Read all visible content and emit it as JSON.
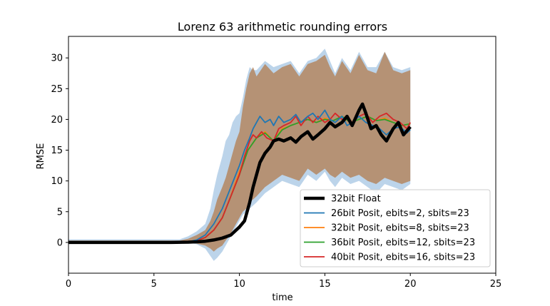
{
  "chart_data": {
    "type": "line",
    "title": "Lorenz 63 arithmetic rounding errors",
    "xlabel": "time",
    "ylabel": "RMSE",
    "xlim": [
      0,
      25
    ],
    "ylim": [
      -5,
      33.5
    ],
    "xticks": [
      0,
      5,
      10,
      15,
      20,
      25
    ],
    "yticks": [
      0,
      5,
      10,
      15,
      20,
      25,
      30
    ],
    "legend_position": "lower-right",
    "band_light": {
      "color": "#bcd4ea",
      "x": [
        0,
        6.5,
        7.0,
        7.5,
        8.0,
        8.3,
        8.5,
        8.7,
        9.0,
        9.2,
        9.4,
        9.6,
        9.8,
        10.0,
        10.2,
        10.4,
        10.6,
        10.8,
        11.0,
        11.5,
        12.0,
        12.5,
        13.0,
        13.5,
        14.0,
        14.5,
        15.0,
        15.3,
        15.6,
        16.0,
        16.5,
        17.0,
        17.5,
        18.0,
        18.5,
        19.0,
        19.5,
        20.0
      ],
      "upper": [
        0.5,
        0.5,
        1.0,
        1.8,
        3.0,
        5.5,
        8.5,
        11.0,
        14.0,
        16.5,
        17.5,
        19.5,
        20.5,
        21.0,
        23.5,
        26.5,
        28.5,
        28.0,
        28.0,
        29.5,
        28.5,
        29.0,
        29.5,
        27.5,
        29.5,
        30.0,
        31.5,
        29.5,
        27.5,
        30.0,
        28.0,
        31.0,
        28.5,
        28.5,
        31.0,
        28.5,
        28.0,
        28.5
      ],
      "lower": [
        0,
        0,
        0,
        -0.3,
        -1.0,
        -2.2,
        -3.0,
        -2.5,
        -1.5,
        -0.5,
        0.5,
        1.5,
        2.5,
        3.5,
        4.5,
        5.0,
        5.5,
        6.0,
        6.5,
        8.0,
        9.0,
        10.0,
        9.5,
        9.0,
        11.0,
        10.0,
        11.5,
        10.0,
        9.0,
        10.5,
        9.5,
        10.0,
        9.0,
        8.0,
        9.5,
        9.0,
        8.5,
        9.5
      ]
    },
    "band_dark": {
      "color": "#b48660",
      "x": [
        0,
        6.5,
        7.0,
        7.5,
        8.0,
        8.3,
        8.5,
        8.7,
        9.0,
        9.2,
        9.4,
        9.6,
        9.8,
        10.0,
        10.2,
        10.4,
        10.6,
        10.8,
        11.0,
        11.5,
        12.0,
        12.5,
        13.0,
        13.5,
        14.0,
        14.5,
        15.0,
        15.3,
        15.6,
        16.0,
        16.5,
        17.0,
        17.5,
        18.0,
        18.5,
        19.0,
        19.5,
        20.0
      ],
      "upper": [
        0.3,
        0.3,
        0.6,
        1.2,
        2.0,
        3.5,
        5.0,
        7.0,
        9.0,
        10.5,
        12.5,
        14.5,
        16.5,
        18.0,
        22.0,
        25.0,
        27.5,
        28.5,
        27.0,
        29.0,
        27.5,
        28.5,
        29.0,
        27.0,
        29.0,
        29.5,
        30.5,
        28.5,
        27.0,
        29.5,
        27.5,
        30.5,
        28.0,
        27.5,
        31.0,
        28.0,
        27.5,
        28.0
      ],
      "lower": [
        0,
        0,
        0,
        -0.2,
        -0.5,
        -1.0,
        -1.5,
        -1.0,
        -0.5,
        0.3,
        1.0,
        2.0,
        3.0,
        4.0,
        5.0,
        5.5,
        6.5,
        7.0,
        7.5,
        9.0,
        10.0,
        11.0,
        10.5,
        10.0,
        12.0,
        11.0,
        12.0,
        11.0,
        10.5,
        11.5,
        10.5,
        11.0,
        10.0,
        9.5,
        10.5,
        10.0,
        9.5,
        10.0
      ]
    },
    "series": [
      {
        "name": "32bit Float",
        "color": "#000000",
        "linewidth": 4.5,
        "x": [
          0,
          6.0,
          7.0,
          7.5,
          8.0,
          8.5,
          9.0,
          9.5,
          10.0,
          10.3,
          10.6,
          10.8,
          11.0,
          11.2,
          11.5,
          11.8,
          12.0,
          12.3,
          12.6,
          13.0,
          13.3,
          13.6,
          14.0,
          14.3,
          14.6,
          15.0,
          15.3,
          15.6,
          16.0,
          16.3,
          16.6,
          17.0,
          17.2,
          17.4,
          17.7,
          18.0,
          18.3,
          18.6,
          19.0,
          19.3,
          19.6,
          20.0
        ],
        "y": [
          0,
          0,
          0.05,
          0.1,
          0.2,
          0.4,
          0.7,
          1.2,
          2.5,
          3.5,
          6.5,
          9.0,
          11.0,
          13.0,
          14.5,
          15.5,
          16.5,
          16.8,
          16.5,
          17.0,
          16.3,
          17.2,
          18.0,
          16.8,
          17.5,
          18.5,
          19.5,
          18.8,
          19.5,
          20.5,
          19.0,
          21.5,
          22.5,
          21.0,
          18.5,
          19.0,
          17.5,
          16.5,
          18.5,
          19.5,
          17.5,
          18.8
        ]
      },
      {
        "name": "26bit Posit, ebits=2, sbits=23",
        "color": "#1f77b4",
        "linewidth": 1.8,
        "x": [
          0,
          6.0,
          7.0,
          7.5,
          8.0,
          8.5,
          9.0,
          9.5,
          10.0,
          10.3,
          10.6,
          10.8,
          11.0,
          11.2,
          11.5,
          11.8,
          12.0,
          12.3,
          12.6,
          13.0,
          13.3,
          13.6,
          14.0,
          14.3,
          14.6,
          15.0,
          15.3,
          15.6,
          16.0,
          16.3,
          16.6,
          17.0,
          17.4,
          17.8,
          18.2,
          18.6,
          19.0,
          19.4,
          19.8,
          20.0
        ],
        "y": [
          0,
          0,
          0.1,
          0.4,
          1.2,
          3.0,
          5.5,
          9.0,
          12.5,
          15.0,
          17.0,
          18.5,
          19.5,
          20.5,
          19.5,
          20.0,
          19.0,
          20.5,
          19.5,
          20.0,
          20.8,
          19.5,
          20.5,
          21.0,
          20.0,
          21.5,
          20.0,
          19.5,
          20.5,
          19.0,
          19.5,
          20.5,
          19.5,
          19.0,
          18.5,
          17.5,
          18.5,
          18.8,
          17.8,
          18.3
        ]
      },
      {
        "name": "32bit Posit, ebits=8, sbits=23",
        "color": "#ff7f0e",
        "linewidth": 1.8,
        "x": [
          0,
          6.0,
          7.0,
          7.5,
          8.0,
          8.5,
          9.0,
          9.5,
          10.0,
          10.5,
          11.0,
          11.5,
          12.0,
          12.5,
          13.0,
          13.5,
          14.0,
          14.5,
          15.0,
          15.5,
          16.0,
          16.5,
          17.0,
          17.5,
          18.0,
          18.5,
          19.0,
          19.5,
          20.0
        ],
        "y": [
          0,
          0,
          0.05,
          0.3,
          0.8,
          2.0,
          4.0,
          7.5,
          11.5,
          15.0,
          17.0,
          18.0,
          16.5,
          18.5,
          19.0,
          19.5,
          20.0,
          19.5,
          20.2,
          19.8,
          20.5,
          19.5,
          20.0,
          20.5,
          19.8,
          20.2,
          19.5,
          19.0,
          19.3
        ]
      },
      {
        "name": "36bit Posit, ebits=12, sbits=23",
        "color": "#2ca02c",
        "linewidth": 1.8,
        "x": [
          0,
          6.0,
          7.0,
          7.5,
          8.0,
          8.5,
          9.0,
          9.5,
          10.0,
          10.5,
          11.0,
          11.5,
          12.0,
          12.5,
          13.0,
          13.5,
          14.0,
          14.5,
          15.0,
          15.5,
          16.0,
          16.5,
          17.0,
          17.5,
          18.0,
          18.5,
          19.0,
          19.5,
          20.0
        ],
        "y": [
          0,
          0,
          0.05,
          0.3,
          0.8,
          2.0,
          4.0,
          7.5,
          11.0,
          15.0,
          17.0,
          17.8,
          16.5,
          18.3,
          19.0,
          19.5,
          20.0,
          19.5,
          20.0,
          19.8,
          20.5,
          19.5,
          20.0,
          20.5,
          19.8,
          20.0,
          19.5,
          19.0,
          19.3
        ]
      },
      {
        "name": "40bit Posit, ebits=16, sbits=23",
        "color": "#d62728",
        "linewidth": 1.8,
        "x": [
          0,
          6.0,
          7.0,
          7.5,
          8.0,
          8.5,
          9.0,
          9.5,
          10.0,
          10.3,
          10.6,
          10.8,
          11.0,
          11.3,
          11.6,
          12.0,
          12.3,
          12.6,
          13.0,
          13.3,
          13.6,
          14.0,
          14.3,
          14.6,
          15.0,
          15.3,
          15.6,
          16.0,
          16.3,
          16.6,
          17.0,
          17.4,
          17.8,
          18.2,
          18.6,
          19.0,
          19.4,
          19.8,
          20.0
        ],
        "y": [
          0,
          0,
          0.05,
          0.3,
          0.8,
          2.0,
          4.0,
          7.5,
          11.0,
          14.0,
          16.5,
          17.5,
          17.0,
          18.0,
          17.0,
          16.5,
          18.5,
          19.0,
          19.5,
          20.5,
          19.0,
          20.5,
          19.5,
          20.5,
          19.5,
          20.0,
          21.0,
          20.0,
          20.5,
          19.5,
          20.5,
          21.0,
          19.5,
          20.5,
          21.0,
          20.0,
          19.5,
          18.5,
          19.5
        ]
      }
    ]
  }
}
